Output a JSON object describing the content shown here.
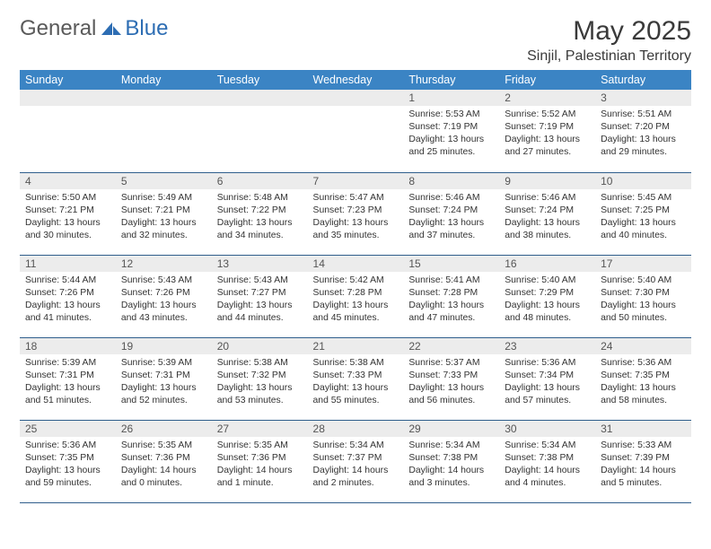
{
  "brand": {
    "part1": "General",
    "part2": "Blue"
  },
  "title": "May 2025",
  "location": "Sinjil, Palestinian Territory",
  "colors": {
    "header_bg": "#3b84c4",
    "header_text": "#ffffff",
    "daynum_bg": "#ececec",
    "row_border": "#2f5e8c",
    "brand_blue": "#2d6db3",
    "text": "#333333"
  },
  "typography": {
    "title_size": 30,
    "location_size": 16,
    "header_size": 12.5,
    "cell_size": 10.4
  },
  "weekdays": [
    "Sunday",
    "Monday",
    "Tuesday",
    "Wednesday",
    "Thursday",
    "Friday",
    "Saturday"
  ],
  "weeks": [
    [
      null,
      null,
      null,
      null,
      {
        "n": "1",
        "sr": "Sunrise: 5:53 AM",
        "ss": "Sunset: 7:19 PM",
        "d1": "Daylight: 13 hours",
        "d2": "and 25 minutes."
      },
      {
        "n": "2",
        "sr": "Sunrise: 5:52 AM",
        "ss": "Sunset: 7:19 PM",
        "d1": "Daylight: 13 hours",
        "d2": "and 27 minutes."
      },
      {
        "n": "3",
        "sr": "Sunrise: 5:51 AM",
        "ss": "Sunset: 7:20 PM",
        "d1": "Daylight: 13 hours",
        "d2": "and 29 minutes."
      }
    ],
    [
      {
        "n": "4",
        "sr": "Sunrise: 5:50 AM",
        "ss": "Sunset: 7:21 PM",
        "d1": "Daylight: 13 hours",
        "d2": "and 30 minutes."
      },
      {
        "n": "5",
        "sr": "Sunrise: 5:49 AM",
        "ss": "Sunset: 7:21 PM",
        "d1": "Daylight: 13 hours",
        "d2": "and 32 minutes."
      },
      {
        "n": "6",
        "sr": "Sunrise: 5:48 AM",
        "ss": "Sunset: 7:22 PM",
        "d1": "Daylight: 13 hours",
        "d2": "and 34 minutes."
      },
      {
        "n": "7",
        "sr": "Sunrise: 5:47 AM",
        "ss": "Sunset: 7:23 PM",
        "d1": "Daylight: 13 hours",
        "d2": "and 35 minutes."
      },
      {
        "n": "8",
        "sr": "Sunrise: 5:46 AM",
        "ss": "Sunset: 7:24 PM",
        "d1": "Daylight: 13 hours",
        "d2": "and 37 minutes."
      },
      {
        "n": "9",
        "sr": "Sunrise: 5:46 AM",
        "ss": "Sunset: 7:24 PM",
        "d1": "Daylight: 13 hours",
        "d2": "and 38 minutes."
      },
      {
        "n": "10",
        "sr": "Sunrise: 5:45 AM",
        "ss": "Sunset: 7:25 PM",
        "d1": "Daylight: 13 hours",
        "d2": "and 40 minutes."
      }
    ],
    [
      {
        "n": "11",
        "sr": "Sunrise: 5:44 AM",
        "ss": "Sunset: 7:26 PM",
        "d1": "Daylight: 13 hours",
        "d2": "and 41 minutes."
      },
      {
        "n": "12",
        "sr": "Sunrise: 5:43 AM",
        "ss": "Sunset: 7:26 PM",
        "d1": "Daylight: 13 hours",
        "d2": "and 43 minutes."
      },
      {
        "n": "13",
        "sr": "Sunrise: 5:43 AM",
        "ss": "Sunset: 7:27 PM",
        "d1": "Daylight: 13 hours",
        "d2": "and 44 minutes."
      },
      {
        "n": "14",
        "sr": "Sunrise: 5:42 AM",
        "ss": "Sunset: 7:28 PM",
        "d1": "Daylight: 13 hours",
        "d2": "and 45 minutes."
      },
      {
        "n": "15",
        "sr": "Sunrise: 5:41 AM",
        "ss": "Sunset: 7:28 PM",
        "d1": "Daylight: 13 hours",
        "d2": "and 47 minutes."
      },
      {
        "n": "16",
        "sr": "Sunrise: 5:40 AM",
        "ss": "Sunset: 7:29 PM",
        "d1": "Daylight: 13 hours",
        "d2": "and 48 minutes."
      },
      {
        "n": "17",
        "sr": "Sunrise: 5:40 AM",
        "ss": "Sunset: 7:30 PM",
        "d1": "Daylight: 13 hours",
        "d2": "and 50 minutes."
      }
    ],
    [
      {
        "n": "18",
        "sr": "Sunrise: 5:39 AM",
        "ss": "Sunset: 7:31 PM",
        "d1": "Daylight: 13 hours",
        "d2": "and 51 minutes."
      },
      {
        "n": "19",
        "sr": "Sunrise: 5:39 AM",
        "ss": "Sunset: 7:31 PM",
        "d1": "Daylight: 13 hours",
        "d2": "and 52 minutes."
      },
      {
        "n": "20",
        "sr": "Sunrise: 5:38 AM",
        "ss": "Sunset: 7:32 PM",
        "d1": "Daylight: 13 hours",
        "d2": "and 53 minutes."
      },
      {
        "n": "21",
        "sr": "Sunrise: 5:38 AM",
        "ss": "Sunset: 7:33 PM",
        "d1": "Daylight: 13 hours",
        "d2": "and 55 minutes."
      },
      {
        "n": "22",
        "sr": "Sunrise: 5:37 AM",
        "ss": "Sunset: 7:33 PM",
        "d1": "Daylight: 13 hours",
        "d2": "and 56 minutes."
      },
      {
        "n": "23",
        "sr": "Sunrise: 5:36 AM",
        "ss": "Sunset: 7:34 PM",
        "d1": "Daylight: 13 hours",
        "d2": "and 57 minutes."
      },
      {
        "n": "24",
        "sr": "Sunrise: 5:36 AM",
        "ss": "Sunset: 7:35 PM",
        "d1": "Daylight: 13 hours",
        "d2": "and 58 minutes."
      }
    ],
    [
      {
        "n": "25",
        "sr": "Sunrise: 5:36 AM",
        "ss": "Sunset: 7:35 PM",
        "d1": "Daylight: 13 hours",
        "d2": "and 59 minutes."
      },
      {
        "n": "26",
        "sr": "Sunrise: 5:35 AM",
        "ss": "Sunset: 7:36 PM",
        "d1": "Daylight: 14 hours",
        "d2": "and 0 minutes."
      },
      {
        "n": "27",
        "sr": "Sunrise: 5:35 AM",
        "ss": "Sunset: 7:36 PM",
        "d1": "Daylight: 14 hours",
        "d2": "and 1 minute."
      },
      {
        "n": "28",
        "sr": "Sunrise: 5:34 AM",
        "ss": "Sunset: 7:37 PM",
        "d1": "Daylight: 14 hours",
        "d2": "and 2 minutes."
      },
      {
        "n": "29",
        "sr": "Sunrise: 5:34 AM",
        "ss": "Sunset: 7:38 PM",
        "d1": "Daylight: 14 hours",
        "d2": "and 3 minutes."
      },
      {
        "n": "30",
        "sr": "Sunrise: 5:34 AM",
        "ss": "Sunset: 7:38 PM",
        "d1": "Daylight: 14 hours",
        "d2": "and 4 minutes."
      },
      {
        "n": "31",
        "sr": "Sunrise: 5:33 AM",
        "ss": "Sunset: 7:39 PM",
        "d1": "Daylight: 14 hours",
        "d2": "and 5 minutes."
      }
    ]
  ]
}
